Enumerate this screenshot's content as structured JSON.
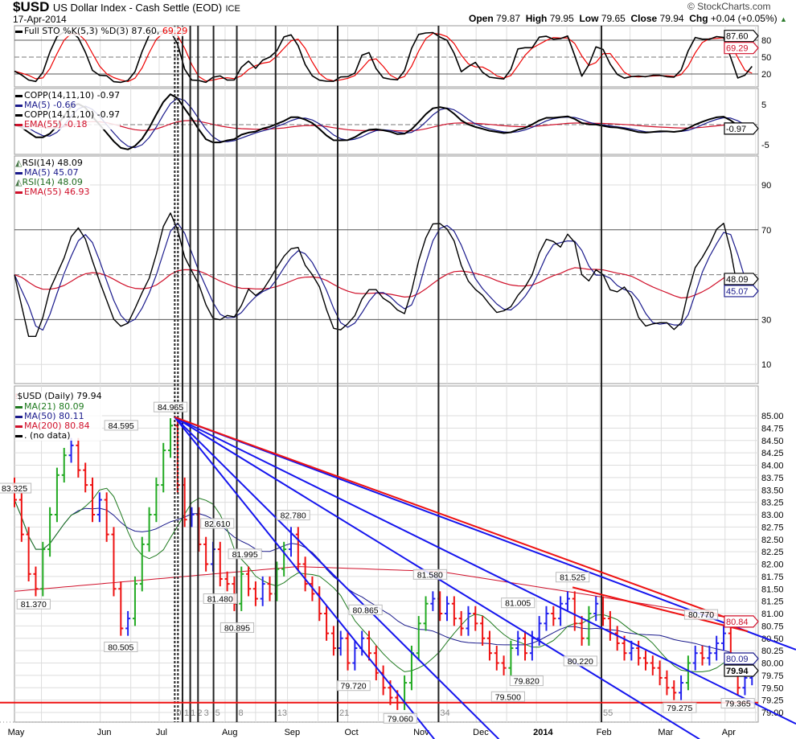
{
  "header": {
    "symbol": "$USD",
    "name": "US Dollar Index - Cash Settle (EOD)",
    "exchange": "ICE",
    "date": "17-Apr-2014",
    "watermark": "© StockCharts.com",
    "open_label": "Open",
    "open": "79.87",
    "high_label": "High",
    "high": "79.95",
    "low_label": "Low",
    "low": "79.65",
    "close_label": "Close",
    "close": "79.94",
    "chg_label": "Chg",
    "chg": "+0.04 (+0.05%)"
  },
  "legends": {
    "sto": {
      "main": "Full STO %K(5,3) %D(3) 87.60,",
      "d": "69.29"
    },
    "copp": {
      "l1": "COPP(14,11,10) -0.97",
      "l2": "MA(5) -0.66",
      "l3": "COPP(14,11,10) -0.97",
      "l4": "EMA(55) -0.18"
    },
    "rsi": {
      "l1": "RSI(14) 48.09",
      "l2": "MA(5) 45.07",
      "l3": "RSI(14) 48.09",
      "l4": "EMA(55) 46.93"
    },
    "price": {
      "l1": "$USD (Daily) 79.94",
      "l2": "MA(21) 80.09",
      "l3": "MA(50) 80.11",
      "l4": "MA(200) 80.84",
      "l5": ". (no data)"
    }
  },
  "colors": {
    "up": "#2222ee",
    "up_strong": "#22aa22",
    "down": "#ee1111",
    "ma21": "#1f7a1f",
    "ma50": "#1a1a8c",
    "ma200": "#d0102a",
    "trend_blue": "#1515ee",
    "trend_red": "#ee1111",
    "grid": "#dddddd"
  },
  "chart_data": {
    "type": "ohlc",
    "title": "$USD US Dollar Index - Cash Settle (EOD)",
    "x_ticks": [
      {
        "label": "May",
        "i": -0.5
      },
      {
        "label": "Jun",
        "i": 12.1
      },
      {
        "label": "Jul",
        "i": 20.4
      },
      {
        "label": "Aug",
        "i": 29.7
      },
      {
        "label": "Sep",
        "i": 38.5
      },
      {
        "label": "Oct",
        "i": 47
      },
      {
        "label": "Nov",
        "i": 56.7
      },
      {
        "label": "Dec",
        "i": 65.1
      },
      {
        "label": "2014",
        "i": 73.6
      },
      {
        "label": "Feb",
        "i": 82.5
      },
      {
        "label": "Mar",
        "i": 91.2
      },
      {
        "label": "Apr",
        "i": 100.2
      }
    ],
    "closes": [
      83.3,
      82.6,
      81.8,
      81.5,
      82.3,
      83.0,
      83.8,
      84.2,
      84.4,
      83.9,
      83.6,
      83.0,
      83.3,
      82.6,
      81.5,
      80.7,
      80.9,
      81.6,
      82.4,
      83.0,
      83.6,
      84.3,
      84.8,
      83.6,
      82.9,
      83.0,
      82.4,
      82.0,
      82.3,
      81.7,
      81.6,
      81.2,
      81.8,
      81.5,
      81.3,
      81.6,
      81.4,
      81.9,
      82.3,
      82.6,
      82.0,
      81.6,
      81.4,
      81.0,
      80.6,
      80.3,
      80.5,
      80.0,
      80.3,
      80.5,
      80.2,
      79.8,
      79.5,
      79.3,
      79.2,
      79.6,
      80.2,
      80.8,
      81.2,
      81.3,
      81.0,
      81.2,
      80.9,
      80.7,
      81.0,
      80.8,
      80.5,
      80.2,
      80.0,
      79.9,
      80.3,
      80.5,
      80.2,
      80.5,
      80.8,
      81.0,
      80.9,
      81.2,
      81.3,
      80.8,
      80.5,
      81.0,
      81.2,
      80.9,
      80.6,
      80.4,
      80.2,
      80.3,
      80.1,
      80.0,
      79.9,
      79.7,
      79.5,
      79.4,
      79.6,
      80.0,
      80.2,
      80.1,
      80.2,
      80.4,
      80.6,
      79.9,
      79.5,
      79.7,
      79.94
    ],
    "ma200_anchors": [
      [
        0,
        81.45
      ],
      [
        20,
        81.7
      ],
      [
        40,
        81.95
      ],
      [
        60,
        81.85
      ],
      [
        80,
        81.4
      ],
      [
        104,
        80.84
      ]
    ],
    "price_ylim": [
      79.0,
      85.0
    ],
    "price_ticks": [
      "79.00",
      "79.25",
      "79.50",
      "79.75",
      "80.00",
      "80.25",
      "80.50",
      "80.75",
      "81.00",
      "81.25",
      "81.50",
      "81.75",
      "82.00",
      "82.25",
      "82.50",
      "82.75",
      "83.00",
      "83.25",
      "83.50",
      "83.75",
      "84.00",
      "84.25",
      "84.50",
      "84.75",
      "85.00"
    ],
    "annotations": [
      {
        "text": "83.325",
        "i": 0,
        "p": 83.325,
        "pos": "above"
      },
      {
        "text": "81.370",
        "i": 2.7,
        "p": 81.37,
        "pos": "below"
      },
      {
        "text": "84.595",
        "i": 8.7,
        "p": 84.595,
        "pos": "above"
      },
      {
        "text": "80.505",
        "i": 15,
        "p": 80.505,
        "pos": "below"
      },
      {
        "text": "84.965",
        "i": 22,
        "p": 84.965,
        "pos": "above"
      },
      {
        "text": "82.610",
        "i": 28.6,
        "p": 82.61,
        "pos": "above"
      },
      {
        "text": "81.480",
        "i": 29,
        "p": 81.48,
        "pos": "below"
      },
      {
        "text": "81.995",
        "i": 32.5,
        "p": 81.995,
        "pos": "above"
      },
      {
        "text": "80.895",
        "i": 31.4,
        "p": 80.895,
        "pos": "below"
      },
      {
        "text": "82.780",
        "i": 39.3,
        "p": 82.78,
        "pos": "above"
      },
      {
        "text": "80.865",
        "i": 49.5,
        "p": 80.865,
        "pos": "above"
      },
      {
        "text": "79.720",
        "i": 47.8,
        "p": 79.72,
        "pos": "below"
      },
      {
        "text": "79.060",
        "i": 54.4,
        "p": 79.06,
        "pos": "below"
      },
      {
        "text": "81.580",
        "i": 58.6,
        "p": 81.58,
        "pos": "above"
      },
      {
        "text": "81.005",
        "i": 71,
        "p": 81.005,
        "pos": "above"
      },
      {
        "text": "79.500",
        "i": 69.6,
        "p": 79.5,
        "pos": "below"
      },
      {
        "text": "79.820",
        "i": 72.2,
        "p": 79.82,
        "pos": "below"
      },
      {
        "text": "81.525",
        "i": 78.7,
        "p": 81.525,
        "pos": "above"
      },
      {
        "text": "80.220",
        "i": 79.8,
        "p": 80.22,
        "pos": "below"
      },
      {
        "text": "80.770",
        "i": 100,
        "p": 80.77,
        "pos": "above"
      },
      {
        "text": "79.275",
        "i": 93.8,
        "p": 79.275,
        "pos": "below"
      },
      {
        "text": "79.365",
        "i": 102,
        "p": 79.365,
        "pos": "below"
      }
    ],
    "trendlines": [
      {
        "color": "blue",
        "from": [
          22.6,
          84.97
        ],
        "to": [
          110.2,
          80.27
        ]
      },
      {
        "color": "blue",
        "from": [
          22.6,
          84.97
        ],
        "to": [
          110.2,
          78.77
        ]
      },
      {
        "color": "blue",
        "from": [
          22.6,
          84.97
        ],
        "to": [
          96.6,
          78.46
        ]
      },
      {
        "color": "blue",
        "from": [
          22.6,
          84.97
        ],
        "to": [
          68.3,
          78.46
        ]
      },
      {
        "color": "blue",
        "from": [
          22.6,
          84.97
        ],
        "to": [
          59.2,
          78.46
        ]
      },
      {
        "color": "red",
        "from": [
          22.6,
          84.97
        ],
        "to": [
          103.4,
          80.76
        ]
      },
      {
        "color": "red",
        "from": [
          78.7,
          81.53
        ],
        "to": [
          103.4,
          80.64
        ]
      }
    ],
    "support_line": 79.2,
    "fib_anchor_i": 22.6,
    "fib_unit_bars": 1.094,
    "fib_numbers": [
      "0",
      "1",
      "1",
      "2",
      "3",
      "5",
      "8",
      "13",
      "21",
      "34",
      "55"
    ],
    "value_tags": {
      "price": [
        {
          "text": "80.84",
          "p": 80.84,
          "color": "#d0102a"
        },
        {
          "text": "80.09",
          "p": 80.09,
          "color": "#1a1a8c"
        },
        {
          "text": "79.94",
          "p": 79.94,
          "color": "#000000"
        }
      ],
      "sto": [
        {
          "text": "87.60",
          "v": 87.6,
          "color": "#000000"
        },
        {
          "text": "69.29",
          "v": 69.29,
          "color": "#d0102a"
        }
      ],
      "copp": [
        {
          "text": "-0.97",
          "v": -0.97,
          "color": "#000000"
        }
      ],
      "rsi": [
        {
          "text": "48.09",
          "v": 48.09,
          "color": "#000000"
        },
        {
          "text": "45.07",
          "v": 45.07,
          "color": "#1a1a8c"
        }
      ]
    },
    "sto_ticks": [
      "20",
      "50",
      "80"
    ],
    "copp_ticks": [
      "-5",
      "5"
    ],
    "rsi_ticks": [
      "10",
      "30",
      "70",
      "90"
    ]
  }
}
